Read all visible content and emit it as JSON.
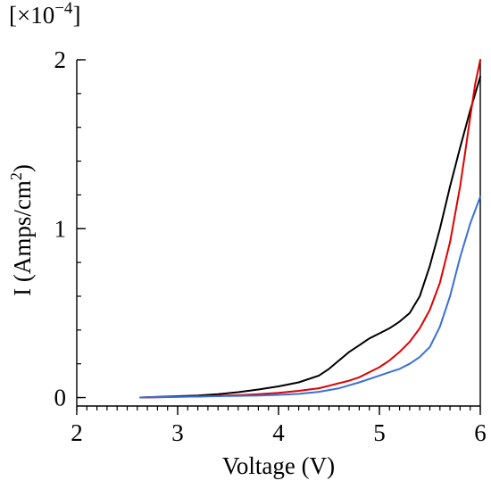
{
  "chart_data": {
    "type": "line",
    "xlabel": "Voltage (V)",
    "ylabel": {
      "prefix": "I (Amps/cm",
      "sup": "2",
      "suffix": ")"
    },
    "y_multiplier": {
      "open": "[×10",
      "exp": "−4",
      "close": "]"
    },
    "xlim": [
      2,
      6
    ],
    "ylim": [
      -0.05,
      2.0
    ],
    "x_ticks": [
      2,
      3,
      4,
      5,
      6
    ],
    "x_tick_labels": [
      "2",
      "3",
      "4",
      "5",
      "6"
    ],
    "y_ticks": [
      0,
      1,
      2
    ],
    "y_tick_labels": [
      "0",
      "1",
      "2"
    ],
    "x_minor_step": 0.1,
    "y_minor_step": 0.2,
    "grid": false,
    "series": [
      {
        "color": "#000000",
        "x": [
          2.63,
          2.8,
          3.0,
          3.2,
          3.4,
          3.6,
          3.8,
          4.0,
          4.2,
          4.4,
          4.5,
          4.6,
          4.7,
          4.8,
          4.9,
          5.0,
          5.1,
          5.2,
          5.3,
          5.4,
          5.5,
          5.6,
          5.7,
          5.8,
          5.9,
          6.0
        ],
        "y": [
          0.0,
          0.004,
          0.008,
          0.012,
          0.02,
          0.032,
          0.048,
          0.066,
          0.09,
          0.13,
          0.17,
          0.22,
          0.27,
          0.31,
          0.35,
          0.38,
          0.41,
          0.45,
          0.5,
          0.6,
          0.78,
          1.0,
          1.25,
          1.48,
          1.7,
          1.9
        ]
      },
      {
        "color": "#e00000",
        "x": [
          2.63,
          2.8,
          3.0,
          3.2,
          3.4,
          3.6,
          3.8,
          4.0,
          4.2,
          4.4,
          4.5,
          4.6,
          4.7,
          4.8,
          4.9,
          5.0,
          5.1,
          5.2,
          5.3,
          5.4,
          5.5,
          5.6,
          5.7,
          5.8,
          5.85,
          5.9,
          5.95,
          6.0
        ],
        "y": [
          0.0,
          0.002,
          0.004,
          0.006,
          0.01,
          0.014,
          0.02,
          0.028,
          0.04,
          0.055,
          0.07,
          0.085,
          0.1,
          0.12,
          0.15,
          0.18,
          0.22,
          0.27,
          0.33,
          0.41,
          0.52,
          0.68,
          0.92,
          1.25,
          1.45,
          1.66,
          1.86,
          2.0
        ]
      },
      {
        "color": "#3a6fd8",
        "x": [
          2.63,
          2.8,
          3.0,
          3.2,
          3.4,
          3.6,
          3.8,
          4.0,
          4.2,
          4.4,
          4.6,
          4.8,
          5.0,
          5.1,
          5.2,
          5.3,
          5.4,
          5.5,
          5.6,
          5.7,
          5.8,
          5.9,
          6.0
        ],
        "y": [
          0.0,
          0.003,
          0.005,
          0.006,
          0.008,
          0.01,
          0.012,
          0.016,
          0.022,
          0.034,
          0.055,
          0.09,
          0.13,
          0.15,
          0.17,
          0.2,
          0.24,
          0.3,
          0.42,
          0.6,
          0.83,
          1.03,
          1.19
        ]
      }
    ]
  }
}
